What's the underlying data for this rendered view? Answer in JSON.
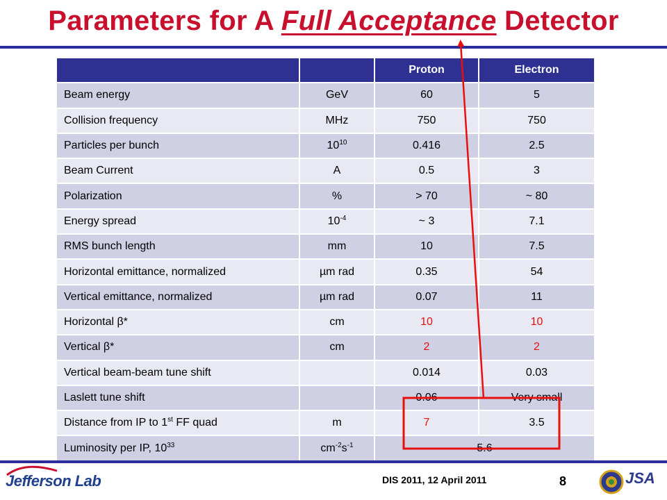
{
  "title": {
    "prefix": "Parameters for A ",
    "emphasis": "Full Acceptance",
    "suffix": " Detector"
  },
  "table": {
    "headers": [
      "",
      "",
      "Proton",
      "Electron"
    ],
    "rows": [
      {
        "name": "Beam energy",
        "unit": "GeV",
        "proton": "60",
        "electron": "5"
      },
      {
        "name": "Collision frequency",
        "unit": "MHz",
        "proton": "750",
        "electron": "750"
      },
      {
        "name": "Particles per bunch",
        "unit_base": "10",
        "unit_sup": "10",
        "proton": "0.416",
        "electron": "2.5"
      },
      {
        "name": "Beam Current",
        "unit": "A",
        "proton": "0.5",
        "electron": "3"
      },
      {
        "name": "Polarization",
        "unit": "%",
        "proton": "> 70",
        "electron": "~ 80"
      },
      {
        "name": "Energy spread",
        "unit_base": "10",
        "unit_sup": "-4",
        "proton": "~ 3",
        "electron": "7.1"
      },
      {
        "name": "RMS bunch length",
        "unit": "mm",
        "proton": "10",
        "electron": "7.5"
      },
      {
        "name": "Horizontal emittance, normalized",
        "unit": "µm rad",
        "proton": "0.35",
        "electron": "54"
      },
      {
        "name": "Vertical emittance, normalized",
        "unit": "µm rad",
        "proton": "0.07",
        "electron": "11"
      },
      {
        "name": "Horizontal β*",
        "unit": "cm",
        "proton": "10",
        "electron": "10"
      },
      {
        "name": "Vertical β*",
        "unit": "cm",
        "proton": "2",
        "electron": "2"
      },
      {
        "name": "Vertical beam-beam tune shift",
        "unit": "",
        "proton": "0.014",
        "electron": "0.03"
      },
      {
        "name": "Laslett tune shift",
        "unit": "",
        "proton": "0.06",
        "electron": "Very small"
      },
      {
        "name_pre": "Distance from IP to 1",
        "name_sup": "st",
        "name_post": " FF quad",
        "unit": "m",
        "proton": "7",
        "electron": "3.5"
      },
      {
        "name_pre": "Luminosity per IP, 10",
        "name_sup": "33",
        "unit_a": "cm",
        "unit_a_sup": "-2",
        "unit_b": "s",
        "unit_b_sup": "-1",
        "combined": "5.6"
      }
    ]
  },
  "footer": {
    "conference": "DIS 2011, 12 April 2011",
    "page": "8",
    "lab_logo": "Jefferson Lab",
    "jsa_logo": "JSA"
  },
  "colors": {
    "title": "#c8102e",
    "header_bg": "#2e3192",
    "row_odd": "#cfd0e4",
    "row_even": "#e8e9f2",
    "highlight": "#e8100e",
    "rule": "#2b2b9a"
  },
  "icons": {
    "seal": "doe-seal-icon",
    "jsa": "jsa-logo-icon",
    "lab": "jefferson-lab-logo-icon"
  }
}
